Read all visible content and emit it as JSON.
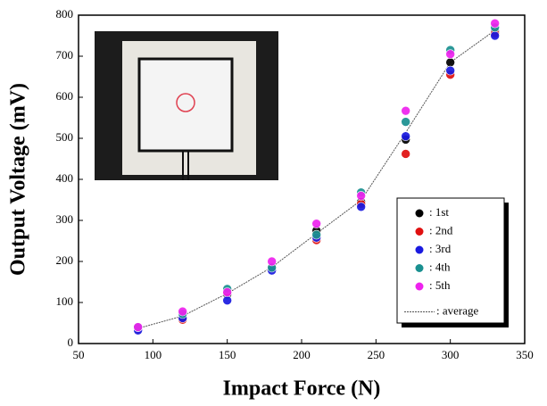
{
  "chart_data": {
    "type": "scatter",
    "x_label": "Impact Force (N)",
    "y_label": "Output Voltage (mV)",
    "x": [
      90,
      120,
      150,
      180,
      210,
      240,
      270,
      300,
      330
    ],
    "xlim": [
      50,
      350
    ],
    "xticks": [
      50,
      100,
      150,
      200,
      250,
      300,
      350
    ],
    "ylim": [
      0,
      800
    ],
    "yticks": [
      0,
      100,
      200,
      300,
      400,
      500,
      600,
      700,
      800
    ],
    "legend": "lower right",
    "series": [
      {
        "name": ": 1st",
        "color": "#000000",
        "mode": "markers",
        "values": [
          35,
          65,
          120,
          183,
          275,
          345,
          497,
          685,
          760
        ]
      },
      {
        "name": ": 2nd",
        "color": "#e01010",
        "mode": "markers",
        "values": [
          38,
          58,
          125,
          185,
          252,
          340,
          462,
          655,
          755
        ]
      },
      {
        "name": ": 3rd",
        "color": "#1a1ae0",
        "mode": "markers",
        "values": [
          32,
          62,
          105,
          178,
          258,
          333,
          505,
          665,
          750
        ]
      },
      {
        "name": ": 4th",
        "color": "#1a9090",
        "mode": "markers",
        "values": [
          40,
          72,
          133,
          185,
          265,
          368,
          540,
          715,
          770
        ]
      },
      {
        "name": ": 5th",
        "color": "#ee22ee",
        "mode": "markers",
        "values": [
          40,
          78,
          125,
          200,
          292,
          360,
          567,
          705,
          780
        ]
      },
      {
        "name": ": average",
        "color": "#555555",
        "mode": "line",
        "values": [
          37,
          67,
          122,
          186,
          268,
          349,
          514,
          685,
          763
        ]
      }
    ]
  }
}
